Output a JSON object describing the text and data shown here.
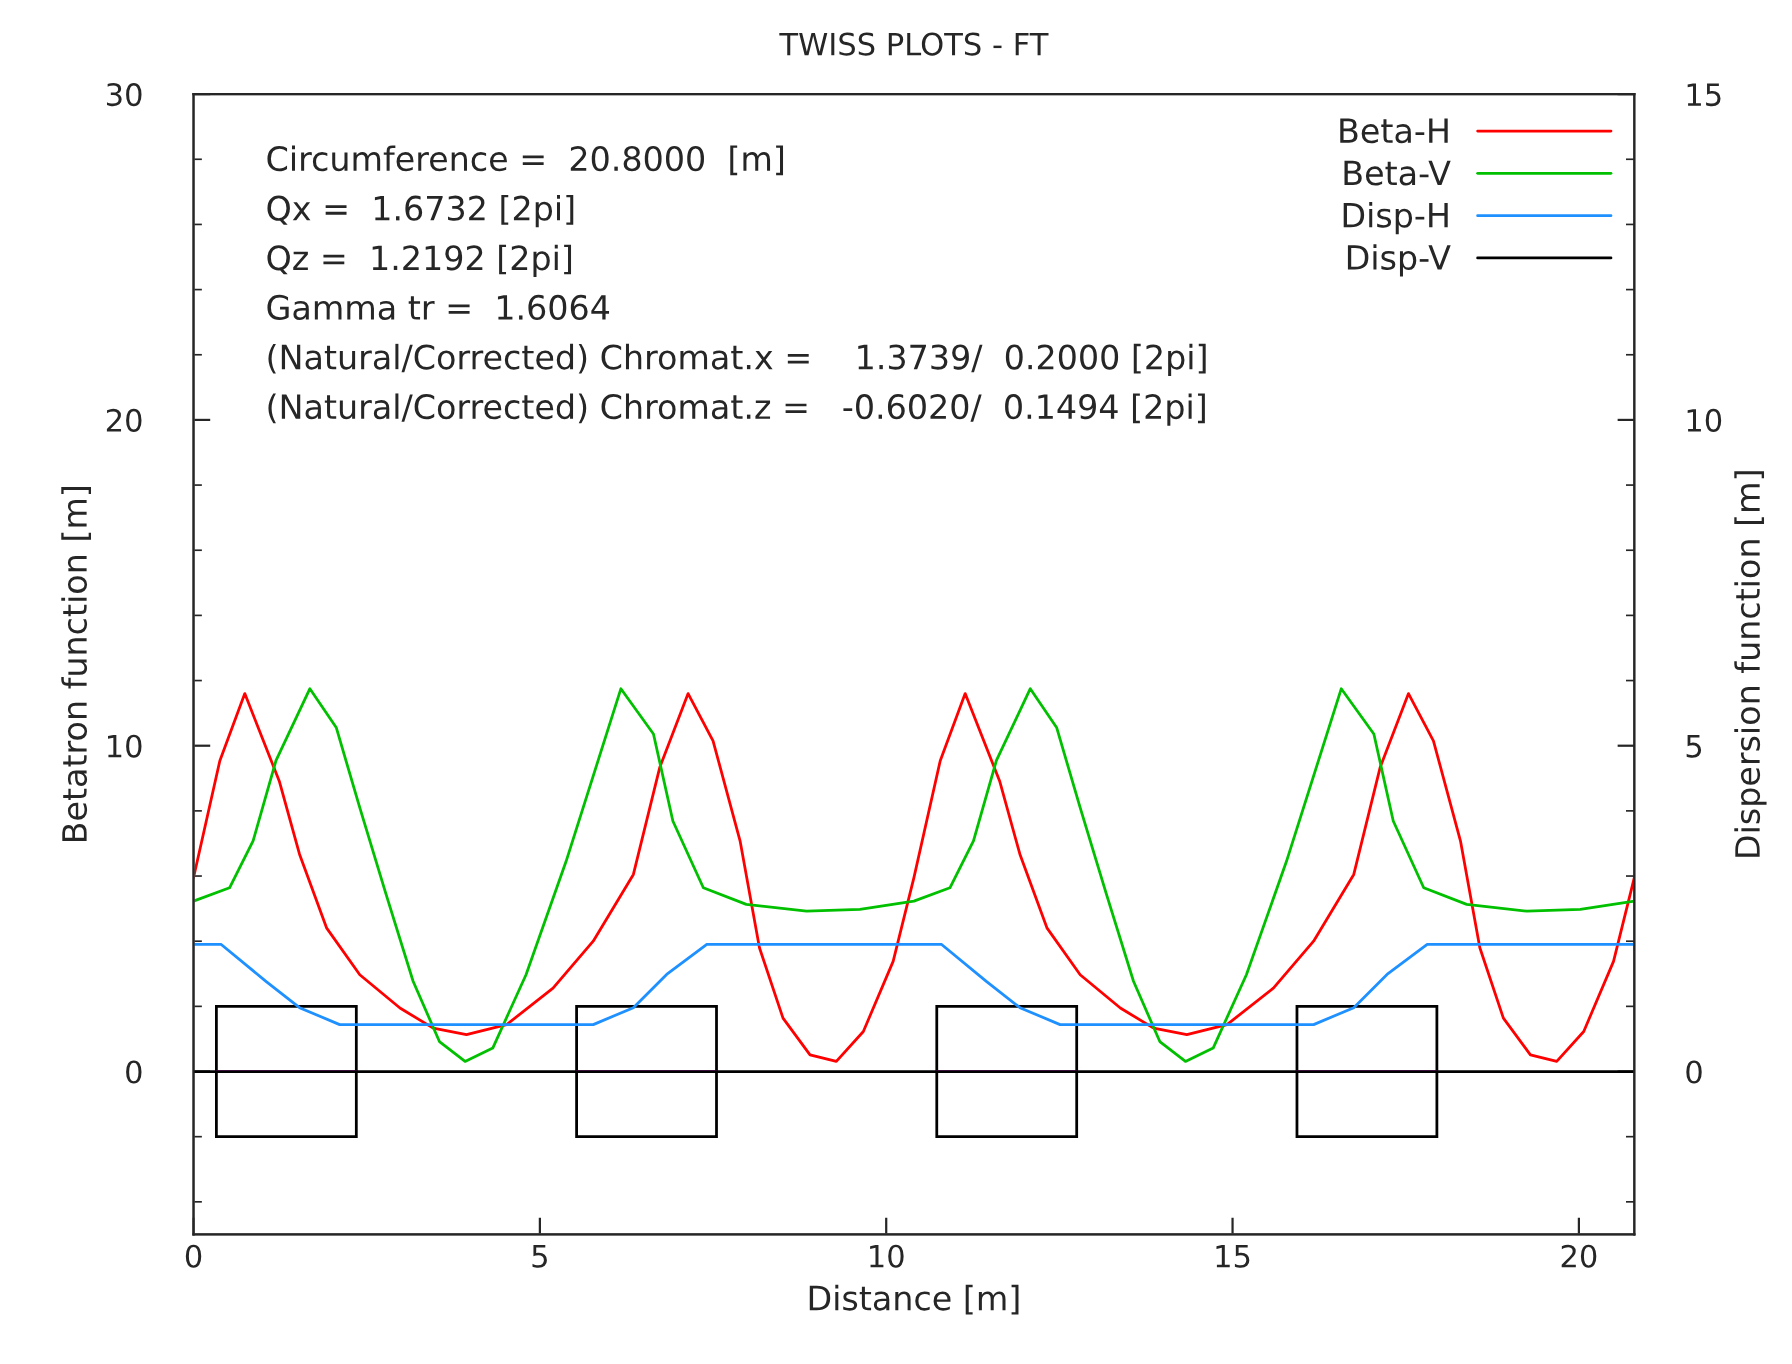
{
  "chart_data": {
    "type": "line",
    "title": "TWISS PLOTS - FT",
    "xlabel": "Distance [m]",
    "ylabel": "Betatron function [m]",
    "y2label": "Dispersion function [m]",
    "xlim": [
      0,
      20.8
    ],
    "xticks": [
      0,
      5,
      10,
      15,
      20
    ],
    "ylim": [
      -5,
      30
    ],
    "yticks": [
      0,
      10,
      20,
      30
    ],
    "y2lim": [
      -2.5,
      15
    ],
    "y2ticks": [
      0,
      5,
      10,
      15
    ],
    "legend": "top right",
    "grid": false,
    "annotations": [
      "Circumference =  20.8000  [m]",
      "Qx =  1.6732 [2pi]",
      "Qz =  1.2192 [2pi]",
      "Gamma tr =  1.6064",
      "(Natural/Corrected) Chromat.x =    1.3739/  0.2000 [2pi]",
      "(Natural/Corrected) Chromat.z =   -0.6020/  0.1494 [2pi]"
    ],
    "series": [
      {
        "name": "Beta-H",
        "color": "#ff0000",
        "x": [
          0,
          0.38,
          0.74,
          1.24,
          1.53,
          1.92,
          2.4,
          2.98,
          3.46,
          3.94,
          4.52,
          5.19,
          5.77,
          6.35,
          6.73,
          7.14,
          7.5,
          7.89,
          8.17,
          8.51,
          8.9,
          9.28,
          9.67,
          10.1,
          10.4,
          10.78,
          11.14,
          11.64,
          11.93,
          12.32,
          12.8,
          13.38,
          13.86,
          14.34,
          14.92,
          15.59,
          16.17,
          16.75,
          17.13,
          17.54,
          17.9,
          18.29,
          18.57,
          18.91,
          19.3,
          19.68,
          20.07,
          20.5,
          20.8
        ],
        "values": [
          5.95,
          9.54,
          11.6,
          8.9,
          6.67,
          4.41,
          2.97,
          1.95,
          1.33,
          1.13,
          1.44,
          2.56,
          4.0,
          6.05,
          9.33,
          11.6,
          10.15,
          7.08,
          3.8,
          1.64,
          0.51,
          0.31,
          1.23,
          3.38,
          5.95,
          9.54,
          11.6,
          8.9,
          6.67,
          4.41,
          2.97,
          1.95,
          1.33,
          1.13,
          1.44,
          2.56,
          4.0,
          6.05,
          9.33,
          11.6,
          10.15,
          7.08,
          3.8,
          1.64,
          0.51,
          0.31,
          1.23,
          3.38,
          5.95
        ]
      },
      {
        "name": "Beta-V",
        "color": "#00c000",
        "x": [
          0,
          0.52,
          0.86,
          1.19,
          1.68,
          2.06,
          2.4,
          2.78,
          3.17,
          3.55,
          3.92,
          4.32,
          4.8,
          5.38,
          6.17,
          6.64,
          6.92,
          7.36,
          7.98,
          8.85,
          9.62,
          10.4,
          10.92,
          11.26,
          11.59,
          12.08,
          12.46,
          12.8,
          13.18,
          13.57,
          13.95,
          14.32,
          14.72,
          15.2,
          15.78,
          16.57,
          17.04,
          17.32,
          17.76,
          18.38,
          19.25,
          20.02,
          20.8
        ],
        "values": [
          5.23,
          5.64,
          7.08,
          9.54,
          11.75,
          10.56,
          8.1,
          5.44,
          2.77,
          0.92,
          0.31,
          0.72,
          2.97,
          6.46,
          11.75,
          10.36,
          7.69,
          5.64,
          5.13,
          4.92,
          4.98,
          5.23,
          5.64,
          7.08,
          9.54,
          11.75,
          10.56,
          8.1,
          5.44,
          2.77,
          0.92,
          0.31,
          0.72,
          2.97,
          6.46,
          11.75,
          10.36,
          7.69,
          5.64,
          5.13,
          4.92,
          4.98,
          5.23
        ]
      },
      {
        "name": "Disp-H",
        "color": "#1e90ff",
        "axis": "y2",
        "x": [
          0,
          0.4,
          1.05,
          1.53,
          2.11,
          5.77,
          6.35,
          6.83,
          7.41,
          10.4,
          10.8,
          11.45,
          11.93,
          12.51,
          16.17,
          16.75,
          17.23,
          17.81,
          20.8
        ],
        "values": [
          1.95,
          1.95,
          1.38,
          0.98,
          0.72,
          0.72,
          0.98,
          1.49,
          1.95,
          1.95,
          1.95,
          1.38,
          0.98,
          0.72,
          0.72,
          0.98,
          1.49,
          1.95,
          1.95
        ]
      },
      {
        "name": "Disp-V",
        "color": "#000000",
        "axis": "y2",
        "x": [
          0,
          20.8
        ],
        "values": [
          0,
          0
        ]
      }
    ]
  }
}
